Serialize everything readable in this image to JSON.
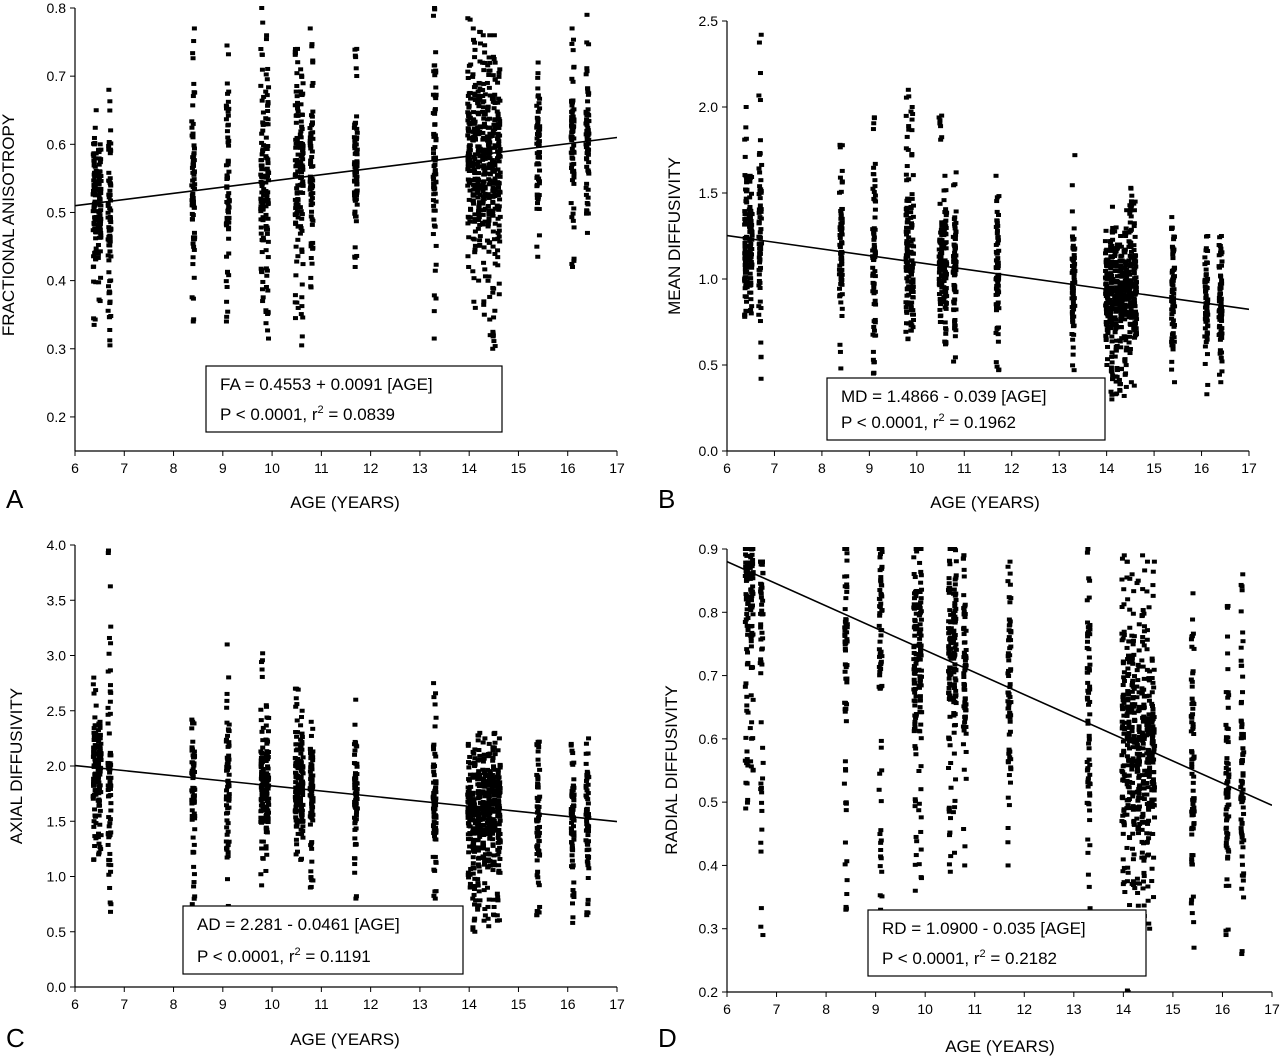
{
  "figure": {
    "panels": [
      "A",
      "B",
      "C",
      "D"
    ]
  },
  "chart_data": [
    {
      "panel_label": "A",
      "type": "scatter",
      "xlabel": "AGE (YEARS)",
      "ylabel": "FRACTIONAL ANISOTROPY",
      "xlim": [
        6,
        17
      ],
      "ylim": [
        0.15,
        0.8
      ],
      "xticks": [
        6,
        7,
        8,
        9,
        10,
        11,
        12,
        13,
        14,
        15,
        16,
        17
      ],
      "xtick_labels": [
        "6",
        "7",
        "8",
        "9",
        "10",
        "11",
        "12",
        "13",
        "14",
        "15",
        "16",
        "17"
      ],
      "yticks": [
        0.2,
        0.3,
        0.4,
        0.5,
        0.6,
        0.7,
        0.8
      ],
      "ytick_labels": [
        "0.2",
        "0.3",
        "0.4",
        "0.5",
        "0.6",
        "0.7",
        "0.8"
      ],
      "annotation_lines": [
        "FA = 0.4553 + 0.0091 [AGE]",
        "P < 0.0001, r",
        "2",
        " = 0.0839"
      ],
      "fit": {
        "intercept": 0.4553,
        "slope": 0.0091
      },
      "columns": [
        {
          "x": 6.4,
          "min": 0.335,
          "max": 0.65
        },
        {
          "x": 6.5,
          "min": 0.37,
          "max": 0.6
        },
        {
          "x": 6.7,
          "min": 0.305,
          "max": 0.68
        },
        {
          "x": 8.4,
          "min": 0.34,
          "max": 0.77
        },
        {
          "x": 9.1,
          "min": 0.34,
          "max": 0.745
        },
        {
          "x": 9.8,
          "min": 0.37,
          "max": 0.8
        },
        {
          "x": 9.9,
          "min": 0.315,
          "max": 0.76
        },
        {
          "x": 10.5,
          "min": 0.345,
          "max": 0.74
        },
        {
          "x": 10.6,
          "min": 0.305,
          "max": 0.71
        },
        {
          "x": 10.8,
          "min": 0.39,
          "max": 0.77
        },
        {
          "x": 11.7,
          "min": 0.42,
          "max": 0.74
        },
        {
          "x": 13.3,
          "min": 0.315,
          "max": 0.8
        },
        {
          "x": 14.0,
          "min": 0.42,
          "max": 0.785
        },
        {
          "x": 14.1,
          "min": 0.36,
          "max": 0.77
        },
        {
          "x": 14.2,
          "min": 0.4,
          "max": 0.765
        },
        {
          "x": 14.3,
          "min": 0.35,
          "max": 0.76
        },
        {
          "x": 14.4,
          "min": 0.32,
          "max": 0.76
        },
        {
          "x": 14.5,
          "min": 0.3,
          "max": 0.76
        },
        {
          "x": 14.6,
          "min": 0.38,
          "max": 0.71
        },
        {
          "x": 15.4,
          "min": 0.435,
          "max": 0.72
        },
        {
          "x": 16.1,
          "min": 0.42,
          "max": 0.77
        },
        {
          "x": 16.4,
          "min": 0.47,
          "max": 0.79
        }
      ]
    },
    {
      "panel_label": "B",
      "type": "scatter",
      "xlabel": "AGE (YEARS)",
      "ylabel": "MEAN DIFFUSIVITY",
      "xlim": [
        6,
        17
      ],
      "ylim": [
        0,
        2.5
      ],
      "xticks": [
        6,
        7,
        8,
        9,
        10,
        11,
        12,
        13,
        14,
        15,
        16,
        17
      ],
      "xtick_labels": [
        "6",
        "7",
        "8",
        "9",
        "10",
        "11",
        "12",
        "13",
        "14",
        "15",
        "16",
        "17"
      ],
      "yticks": [
        0,
        0.5,
        1.0,
        1.5,
        2.0,
        2.5
      ],
      "ytick_labels": [
        "0.0",
        "0.5",
        "1.0",
        "1.5",
        "2.0",
        "2.5"
      ],
      "annotation_lines": [
        "MD = 1.4866 - 0.039 [AGE]",
        "P < 0.0001, r",
        "2",
        " = 0.1962"
      ],
      "fit": {
        "intercept": 1.4866,
        "slope": -0.039
      },
      "columns": [
        {
          "x": 6.4,
          "min": 0.78,
          "max": 2.0
        },
        {
          "x": 6.5,
          "min": 0.8,
          "max": 1.6
        },
        {
          "x": 6.7,
          "min": 0.42,
          "max": 2.42
        },
        {
          "x": 8.4,
          "min": 0.48,
          "max": 1.78
        },
        {
          "x": 9.1,
          "min": 0.45,
          "max": 1.94
        },
        {
          "x": 9.8,
          "min": 0.65,
          "max": 2.1
        },
        {
          "x": 9.9,
          "min": 0.7,
          "max": 2.0
        },
        {
          "x": 10.5,
          "min": 0.75,
          "max": 1.95
        },
        {
          "x": 10.6,
          "min": 0.62,
          "max": 1.6
        },
        {
          "x": 10.8,
          "min": 0.52,
          "max": 1.62
        },
        {
          "x": 11.7,
          "min": 0.47,
          "max": 1.6
        },
        {
          "x": 13.3,
          "min": 0.47,
          "max": 1.72
        },
        {
          "x": 14.0,
          "min": 0.5,
          "max": 1.28
        },
        {
          "x": 14.1,
          "min": 0.3,
          "max": 1.42
        },
        {
          "x": 14.2,
          "min": 0.33,
          "max": 1.3
        },
        {
          "x": 14.3,
          "min": 0.35,
          "max": 1.25
        },
        {
          "x": 14.4,
          "min": 0.32,
          "max": 1.4
        },
        {
          "x": 14.5,
          "min": 0.4,
          "max": 1.53
        },
        {
          "x": 14.6,
          "min": 0.38,
          "max": 1.45
        },
        {
          "x": 15.4,
          "min": 0.4,
          "max": 1.36
        },
        {
          "x": 16.1,
          "min": 0.33,
          "max": 1.25
        },
        {
          "x": 16.4,
          "min": 0.4,
          "max": 1.25
        }
      ]
    },
    {
      "panel_label": "C",
      "type": "scatter",
      "xlabel": "AGE (YEARS)",
      "ylabel": "AXIAL DIFFUSIVITY",
      "xlim": [
        6,
        17
      ],
      "ylim": [
        0,
        4.0
      ],
      "xticks": [
        6,
        7,
        8,
        9,
        10,
        11,
        12,
        13,
        14,
        15,
        16,
        17
      ],
      "xtick_labels": [
        "6",
        "7",
        "8",
        "9",
        "10",
        "11",
        "12",
        "13",
        "14",
        "15",
        "16",
        "17"
      ],
      "yticks": [
        0,
        0.5,
        1.0,
        1.5,
        2.0,
        2.5,
        3.0,
        3.5,
        4.0
      ],
      "ytick_labels": [
        "0.0",
        "0.5",
        "1.0",
        "1.5",
        "2.0",
        "2.5",
        "3.0",
        "3.5",
        "4.0"
      ],
      "annotation_lines": [
        "AD = 2.281 - 0.0461 [AGE]",
        "P < 0.0001, r",
        "2",
        " = 0.1191"
      ],
      "fit": {
        "intercept": 2.281,
        "slope": -0.0461
      },
      "columns": [
        {
          "x": 6.4,
          "min": 1.15,
          "max": 2.8
        },
        {
          "x": 6.5,
          "min": 1.2,
          "max": 2.4
        },
        {
          "x": 6.7,
          "min": 0.68,
          "max": 3.95
        },
        {
          "x": 8.4,
          "min": 0.75,
          "max": 2.42
        },
        {
          "x": 9.1,
          "min": 0.7,
          "max": 3.1
        },
        {
          "x": 9.8,
          "min": 0.92,
          "max": 3.02
        },
        {
          "x": 9.9,
          "min": 1.05,
          "max": 2.55
        },
        {
          "x": 10.5,
          "min": 1.2,
          "max": 2.7
        },
        {
          "x": 10.6,
          "min": 1.15,
          "max": 2.5
        },
        {
          "x": 10.8,
          "min": 0.9,
          "max": 2.4
        },
        {
          "x": 11.7,
          "min": 0.8,
          "max": 2.6
        },
        {
          "x": 13.3,
          "min": 0.8,
          "max": 2.75
        },
        {
          "x": 14.0,
          "min": 0.9,
          "max": 2.2
        },
        {
          "x": 14.1,
          "min": 0.5,
          "max": 2.15
        },
        {
          "x": 14.2,
          "min": 0.7,
          "max": 2.3
        },
        {
          "x": 14.3,
          "min": 0.6,
          "max": 2.25
        },
        {
          "x": 14.4,
          "min": 0.55,
          "max": 2.2
        },
        {
          "x": 14.5,
          "min": 0.65,
          "max": 2.3
        },
        {
          "x": 14.6,
          "min": 0.6,
          "max": 2.25
        },
        {
          "x": 15.4,
          "min": 0.65,
          "max": 2.22
        },
        {
          "x": 16.1,
          "min": 0.58,
          "max": 2.2
        },
        {
          "x": 16.4,
          "min": 0.65,
          "max": 2.25
        }
      ]
    },
    {
      "panel_label": "D",
      "type": "scatter",
      "xlabel": "AGE (YEARS)",
      "ylabel": "RADIAL DIFFUSIVITY",
      "xlim": [
        6,
        17
      ],
      "ylim": [
        0.2,
        0.9
      ],
      "xticks": [
        6,
        7,
        8,
        9,
        10,
        11,
        12,
        13,
        14,
        15,
        16,
        17
      ],
      "xtick_labels": [
        "6",
        "7",
        "8",
        "9",
        "10",
        "11",
        "12",
        "13",
        "14",
        "15",
        "16",
        "17"
      ],
      "yticks": [
        0.2,
        0.3,
        0.4,
        0.5,
        0.6,
        0.7,
        0.8,
        0.9
      ],
      "ytick_labels": [
        "0.2",
        "0.3",
        "0.4",
        "0.5",
        "0.6",
        "0.7",
        "0.8",
        "0.9"
      ],
      "annotation_lines": [
        "RD = 1.0900 - 0.035 [AGE]",
        "P < 0.0001, r",
        "2",
        " = 0.2182"
      ],
      "fit": {
        "intercept": 1.09,
        "slope": -0.035
      },
      "columns": [
        {
          "x": 6.4,
          "min": 0.49,
          "max": 0.9
        },
        {
          "x": 6.5,
          "min": 0.55,
          "max": 0.9
        },
        {
          "x": 6.7,
          "min": 0.29,
          "max": 0.88
        },
        {
          "x": 8.4,
          "min": 0.33,
          "max": 0.9
        },
        {
          "x": 9.1,
          "min": 0.33,
          "max": 0.9
        },
        {
          "x": 9.8,
          "min": 0.36,
          "max": 0.9
        },
        {
          "x": 9.9,
          "min": 0.38,
          "max": 0.9
        },
        {
          "x": 10.5,
          "min": 0.39,
          "max": 0.9
        },
        {
          "x": 10.6,
          "min": 0.42,
          "max": 0.9
        },
        {
          "x": 10.8,
          "min": 0.4,
          "max": 0.89
        },
        {
          "x": 11.7,
          "min": 0.4,
          "max": 0.88
        },
        {
          "x": 13.3,
          "min": 0.3,
          "max": 0.9
        },
        {
          "x": 14.0,
          "min": 0.27,
          "max": 0.89
        },
        {
          "x": 14.1,
          "min": 0.2,
          "max": 0.88
        },
        {
          "x": 14.2,
          "min": 0.28,
          "max": 0.86
        },
        {
          "x": 14.3,
          "min": 0.3,
          "max": 0.85
        },
        {
          "x": 14.4,
          "min": 0.32,
          "max": 0.89
        },
        {
          "x": 14.5,
          "min": 0.3,
          "max": 0.88
        },
        {
          "x": 14.6,
          "min": 0.35,
          "max": 0.88
        },
        {
          "x": 15.4,
          "min": 0.27,
          "max": 0.83
        },
        {
          "x": 16.1,
          "min": 0.29,
          "max": 0.81
        },
        {
          "x": 16.4,
          "min": 0.26,
          "max": 0.86
        }
      ]
    }
  ]
}
